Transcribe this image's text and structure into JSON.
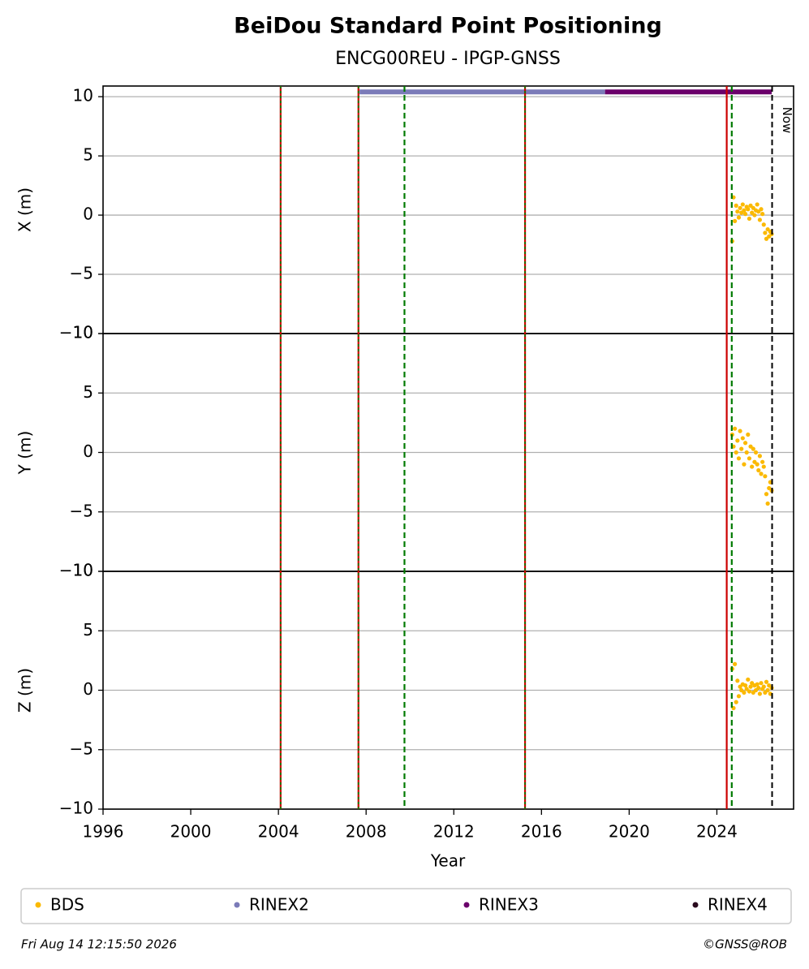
{
  "chart_data": {
    "type": "scatter",
    "title": "BeiDou Standard Point Positioning",
    "subtitle": "ENCG00REU - IPGP-GNSS",
    "xlabel": "Year",
    "xlim": [
      1996,
      2027.5
    ],
    "xticks": [
      1996,
      2000,
      2004,
      2008,
      2012,
      2016,
      2020,
      2024
    ],
    "x": [
      2024.7,
      2024.76,
      2024.82,
      2024.88,
      2024.94,
      2025.0,
      2025.06,
      2025.12,
      2025.18,
      2025.24,
      2025.3,
      2025.36,
      2025.42,
      2025.48,
      2025.54,
      2025.6,
      2025.66,
      2025.72,
      2025.78,
      2025.84,
      2025.9,
      2025.96,
      2026.02,
      2026.08,
      2026.14,
      2026.2,
      2026.26,
      2026.32,
      2026.38,
      2026.44,
      2026.5
    ],
    "grid": true,
    "panels": [
      {
        "ylabel": "X (m)",
        "ylim": [
          -10,
          10.9
        ],
        "yticks": [
          {
            "value": -10,
            "label": "−10"
          },
          {
            "value": -5,
            "label": "−5"
          },
          0,
          5,
          10
        ],
        "series": [
          {
            "name": "BDS",
            "color": "#fbb900",
            "values": [
              -2.2,
              1.5,
              -0.5,
              0.8,
              0.3,
              -0.2,
              0.6,
              0.2,
              0.9,
              0.4,
              0.1,
              0.7,
              0.5,
              -0.3,
              0.8,
              0.2,
              0.6,
              0.0,
              0.4,
              0.9,
              0.3,
              -0.4,
              0.5,
              0.1,
              -0.8,
              -1.5,
              -2.0,
              -1.2,
              -1.8,
              -1.4,
              -1.6
            ]
          }
        ]
      },
      {
        "ylabel": "Y (m)",
        "ylim": [
          -10,
          10
        ],
        "yticks": [
          {
            "value": -10,
            "label": "−10"
          },
          {
            "value": -5,
            "label": "−5"
          },
          0,
          5,
          10
        ],
        "series": [
          {
            "name": "BDS",
            "color": "#fbb900",
            "values": [
              1.5,
              0.5,
              2.0,
              0.0,
              1.0,
              -0.5,
              1.8,
              0.3,
              1.2,
              -1.0,
              0.8,
              0.0,
              1.5,
              -0.5,
              0.5,
              -1.2,
              0.3,
              -0.8,
              0.0,
              -1.0,
              -1.5,
              -0.3,
              -1.8,
              -0.8,
              -1.2,
              -2.0,
              -3.5,
              -4.3,
              -3.0,
              -2.5,
              -3.2
            ]
          }
        ]
      },
      {
        "ylabel": "Z (m)",
        "ylim": [
          -10,
          10
        ],
        "yticks": [
          {
            "value": -10,
            "label": "−10"
          },
          {
            "value": -5,
            "label": "−5"
          },
          0,
          5,
          10
        ],
        "series": [
          {
            "name": "BDS",
            "color": "#fbb900",
            "values": [
              1.8,
              -1.5,
              2.2,
              -1.0,
              0.8,
              -0.5,
              0.3,
              0.0,
              0.5,
              -0.2,
              0.4,
              0.1,
              0.9,
              -0.1,
              0.3,
              0.6,
              -0.2,
              0.4,
              0.0,
              0.5,
              0.2,
              -0.3,
              0.6,
              0.1,
              0.3,
              -0.2,
              0.7,
              0.0,
              0.4,
              -0.3,
              0.2
            ]
          }
        ]
      }
    ],
    "files": [
      {
        "name": "RINEX2",
        "color": "#7b7bb8",
        "x": [
          2007.7,
          2018.9
        ],
        "values": [
          10.4,
          10.4
        ]
      },
      {
        "name": "RINEX3",
        "color": "#6b006b",
        "x": [
          2018.9,
          2026.5
        ],
        "values": [
          10.4,
          10.4
        ]
      },
      {
        "name": "RINEX4",
        "color": "#2a0a1e",
        "x": [],
        "values": []
      }
    ],
    "legend_name": "BDS",
    "legend_color": "#fbb900",
    "vlines": [
      {
        "x": 2004.1,
        "color": "#cc0000",
        "overlay": "#008000"
      },
      {
        "x": 2007.65,
        "color": "#cc0000",
        "overlay": "#008000"
      },
      {
        "x": 2009.75,
        "color": "#007a00",
        "dashed": true
      },
      {
        "x": 2015.25,
        "color": "#cc0000",
        "overlay": "#008000"
      },
      {
        "x": 2024.45,
        "color": "#cc0000"
      },
      {
        "x": 2024.68,
        "color": "#007a00",
        "dashed": true
      }
    ],
    "now": {
      "x": 2026.52,
      "label": "Now"
    },
    "date": "Fri Aug 14 12:15:50 2026",
    "credit": "©GNSS@ROB"
  }
}
